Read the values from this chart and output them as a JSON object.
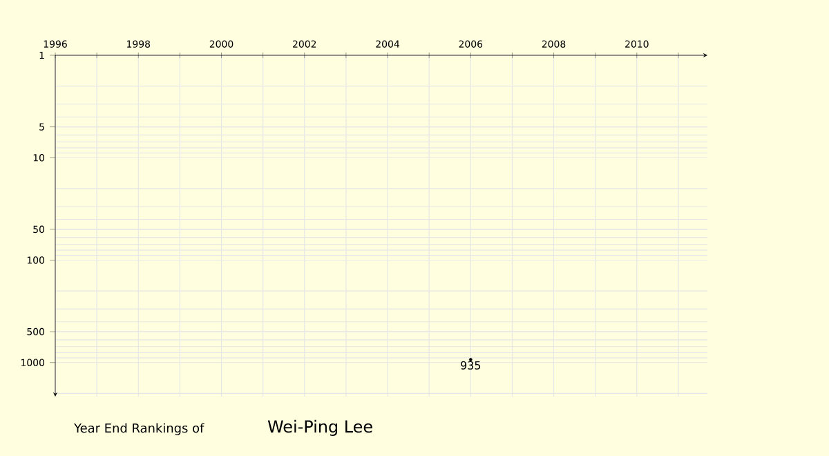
{
  "chart_data": {
    "type": "scatter",
    "title": "Year End Rankings of",
    "subtitle": "Wei-Ping Lee",
    "x": [
      2006
    ],
    "values": [
      935
    ],
    "color": "#000000",
    "marker": "circle",
    "data_labels": true,
    "log": "y",
    "grid": true,
    "xlim": [
      1996,
      2011.7
    ],
    "ylim": [
      2150,
      1
    ],
    "xticks": [
      1996,
      {
        "value": 1997,
        "label": null
      },
      1998,
      {
        "value": 1999,
        "label": null
      },
      2000,
      {
        "value": 2001,
        "label": null
      },
      2002,
      {
        "value": 2003,
        "label": null
      },
      2004,
      {
        "value": 2005,
        "label": null
      },
      2006,
      {
        "value": 2007,
        "label": null
      },
      2008,
      {
        "value": 2009,
        "label": null
      },
      2010,
      {
        "value": 2011,
        "label": null
      }
    ],
    "yticks": [
      1,
      5,
      10,
      50,
      100,
      500,
      1000
    ]
  }
}
